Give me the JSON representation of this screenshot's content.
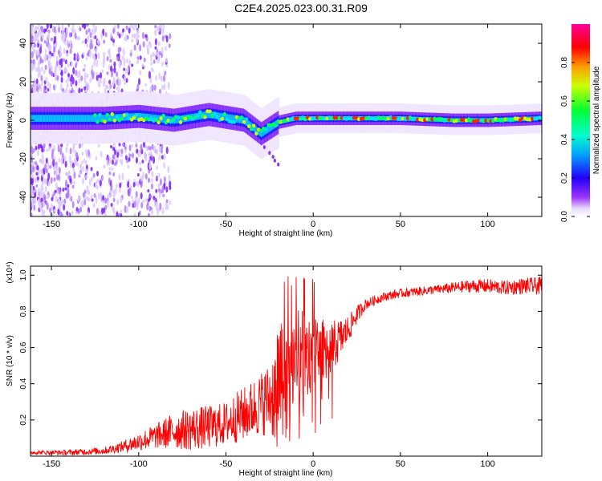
{
  "figure": {
    "title": "C2E4.2025.023.00.31.R09"
  },
  "chart_data": [
    {
      "type": "heatmap",
      "xlabel": "Height of straight line (km)",
      "ylabel": "Frequency (Hz)",
      "xlim": [
        -162,
        131
      ],
      "ylim": [
        -50,
        50
      ],
      "xticks": [
        -150,
        -100,
        -50,
        0,
        50,
        100
      ],
      "yticks": [
        -40,
        -20,
        0,
        20,
        40
      ],
      "colorbar": {
        "label": "Normalized spectral amplitude",
        "range": [
          0,
          1
        ],
        "ticks": [
          0.0,
          0.2,
          0.4,
          0.6,
          0.8
        ]
      },
      "ridge": {
        "description": "narrow band centered near 0 Hz",
        "points": [
          [
            -120,
            1
          ],
          [
            -100,
            2
          ],
          [
            -80,
            0
          ],
          [
            -60,
            3
          ],
          [
            -40,
            0
          ],
          [
            -30,
            -7
          ],
          [
            -20,
            -1
          ],
          [
            -10,
            1
          ],
          [
            0,
            1
          ],
          [
            20,
            1
          ],
          [
            50,
            1
          ],
          [
            80,
            0
          ],
          [
            100,
            0
          ],
          [
            130,
            1
          ]
        ]
      },
      "colors": [
        "#ffffff",
        "#e6d9ff",
        "#8000ff",
        "#0000ff",
        "#00ccff",
        "#00ff66",
        "#c8ff00",
        "#ff9900",
        "#ff0000",
        "#ff00aa"
      ]
    },
    {
      "type": "line",
      "xlabel": "Height of straight line (km)",
      "ylabel": "SNR (10 * v/v)",
      "yscale_label": "(x10⁴)",
      "xlim": [
        -162,
        131
      ],
      "ylim": [
        0,
        1.05
      ],
      "xticks": [
        -150,
        -100,
        -50,
        0,
        50,
        100
      ],
      "yticks": [
        0.2,
        0.4,
        0.6,
        0.8,
        1.0
      ],
      "series": [
        {
          "color": "#ff0000",
          "x": [
            -162,
            -140,
            -120,
            -110,
            -100,
            -90,
            -80,
            -70,
            -60,
            -50,
            -45,
            -40,
            -35,
            -30,
            -25,
            -20,
            -15,
            -10,
            -5,
            0,
            5,
            10,
            15,
            20,
            25,
            30,
            40,
            50,
            60,
            70,
            80,
            90,
            100,
            110,
            120,
            131
          ],
          "y": [
            0.02,
            0.02,
            0.03,
            0.05,
            0.08,
            0.11,
            0.14,
            0.15,
            0.16,
            0.18,
            0.21,
            0.23,
            0.26,
            0.29,
            0.32,
            0.38,
            0.46,
            0.52,
            0.55,
            0.56,
            0.58,
            0.6,
            0.64,
            0.7,
            0.78,
            0.84,
            0.88,
            0.9,
            0.91,
            0.92,
            0.93,
            0.94,
            0.94,
            0.93,
            0.94,
            0.94
          ],
          "noise": [
            0.01,
            0.015,
            0.02,
            0.03,
            0.05,
            0.07,
            0.1,
            0.12,
            0.12,
            0.12,
            0.14,
            0.15,
            0.16,
            0.18,
            0.2,
            0.35,
            0.35,
            0.3,
            0.25,
            0.2,
            0.18,
            0.15,
            0.12,
            0.08,
            0.05,
            0.03,
            0.025,
            0.025,
            0.025,
            0.025,
            0.03,
            0.035,
            0.04,
            0.04,
            0.045,
            0.05
          ]
        }
      ]
    }
  ]
}
